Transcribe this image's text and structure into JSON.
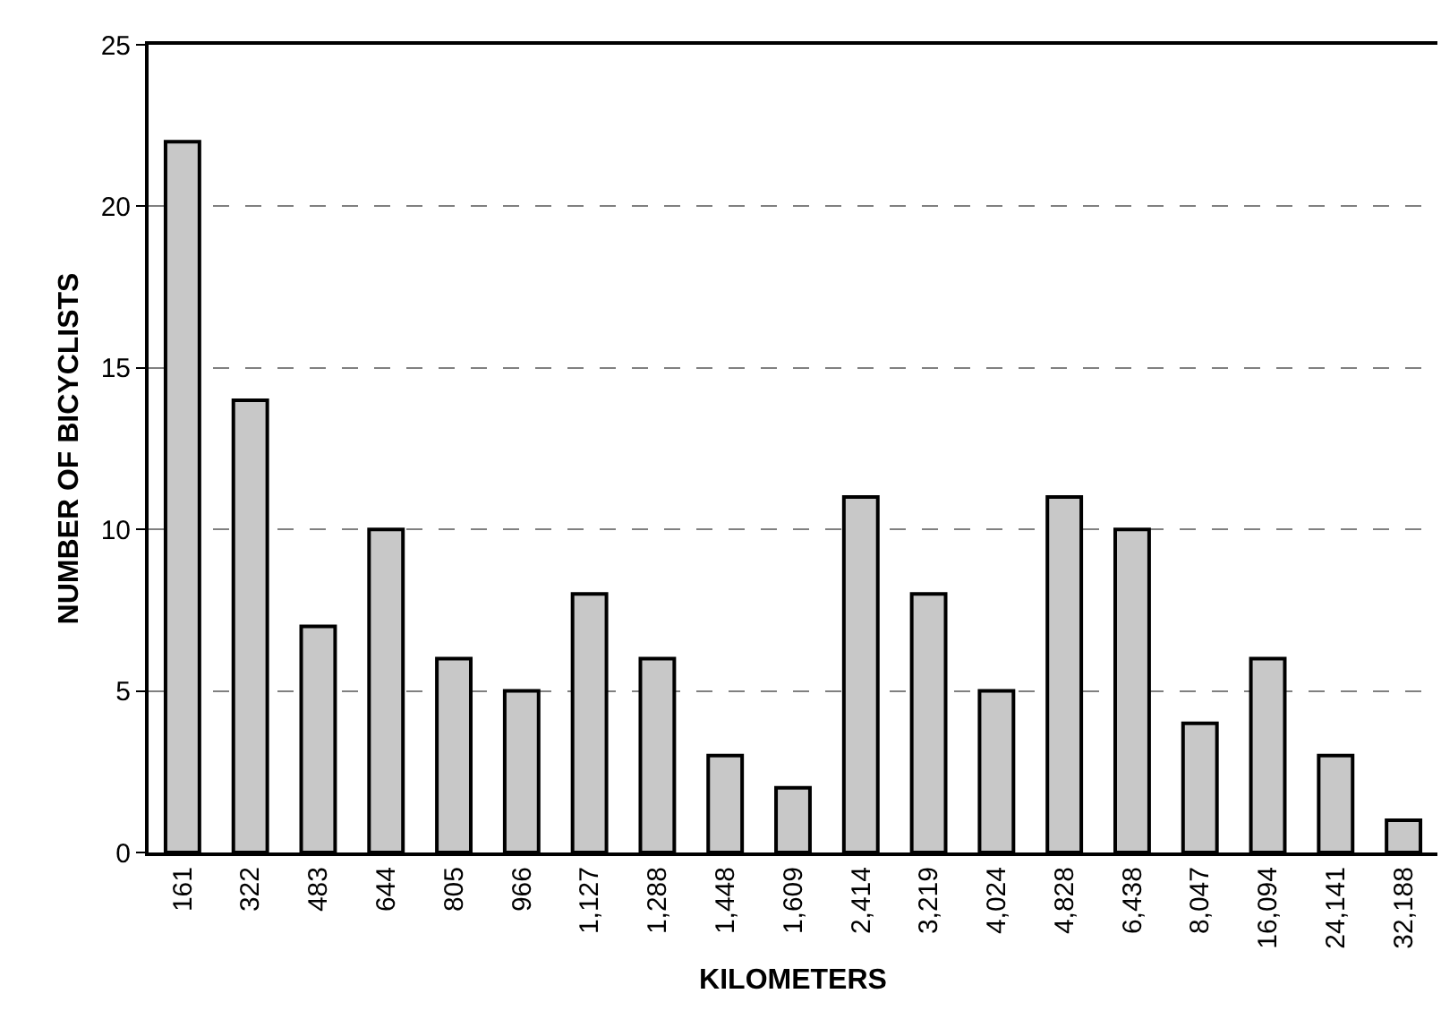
{
  "chart_data": {
    "type": "bar",
    "xlabel": "KILOMETERS",
    "ylabel": "NUMBER OF BICYCLISTS",
    "categories": [
      "161",
      "322",
      "483",
      "644",
      "805",
      "966",
      "1,127",
      "1,288",
      "1,448",
      "1,609",
      "2,414",
      "3,219",
      "4,024",
      "4,828",
      "6,438",
      "8,047",
      "16,094",
      "24,141",
      "32,188"
    ],
    "values": [
      22,
      14,
      7,
      10,
      6,
      5,
      8,
      6,
      3,
      2,
      11,
      8,
      5,
      11,
      10,
      4,
      6,
      3,
      1
    ],
    "color": "#c8c8c8",
    "ylim": [
      0,
      25
    ],
    "yticks": [
      0,
      5,
      10,
      15,
      20,
      25
    ],
    "grid": "y"
  }
}
